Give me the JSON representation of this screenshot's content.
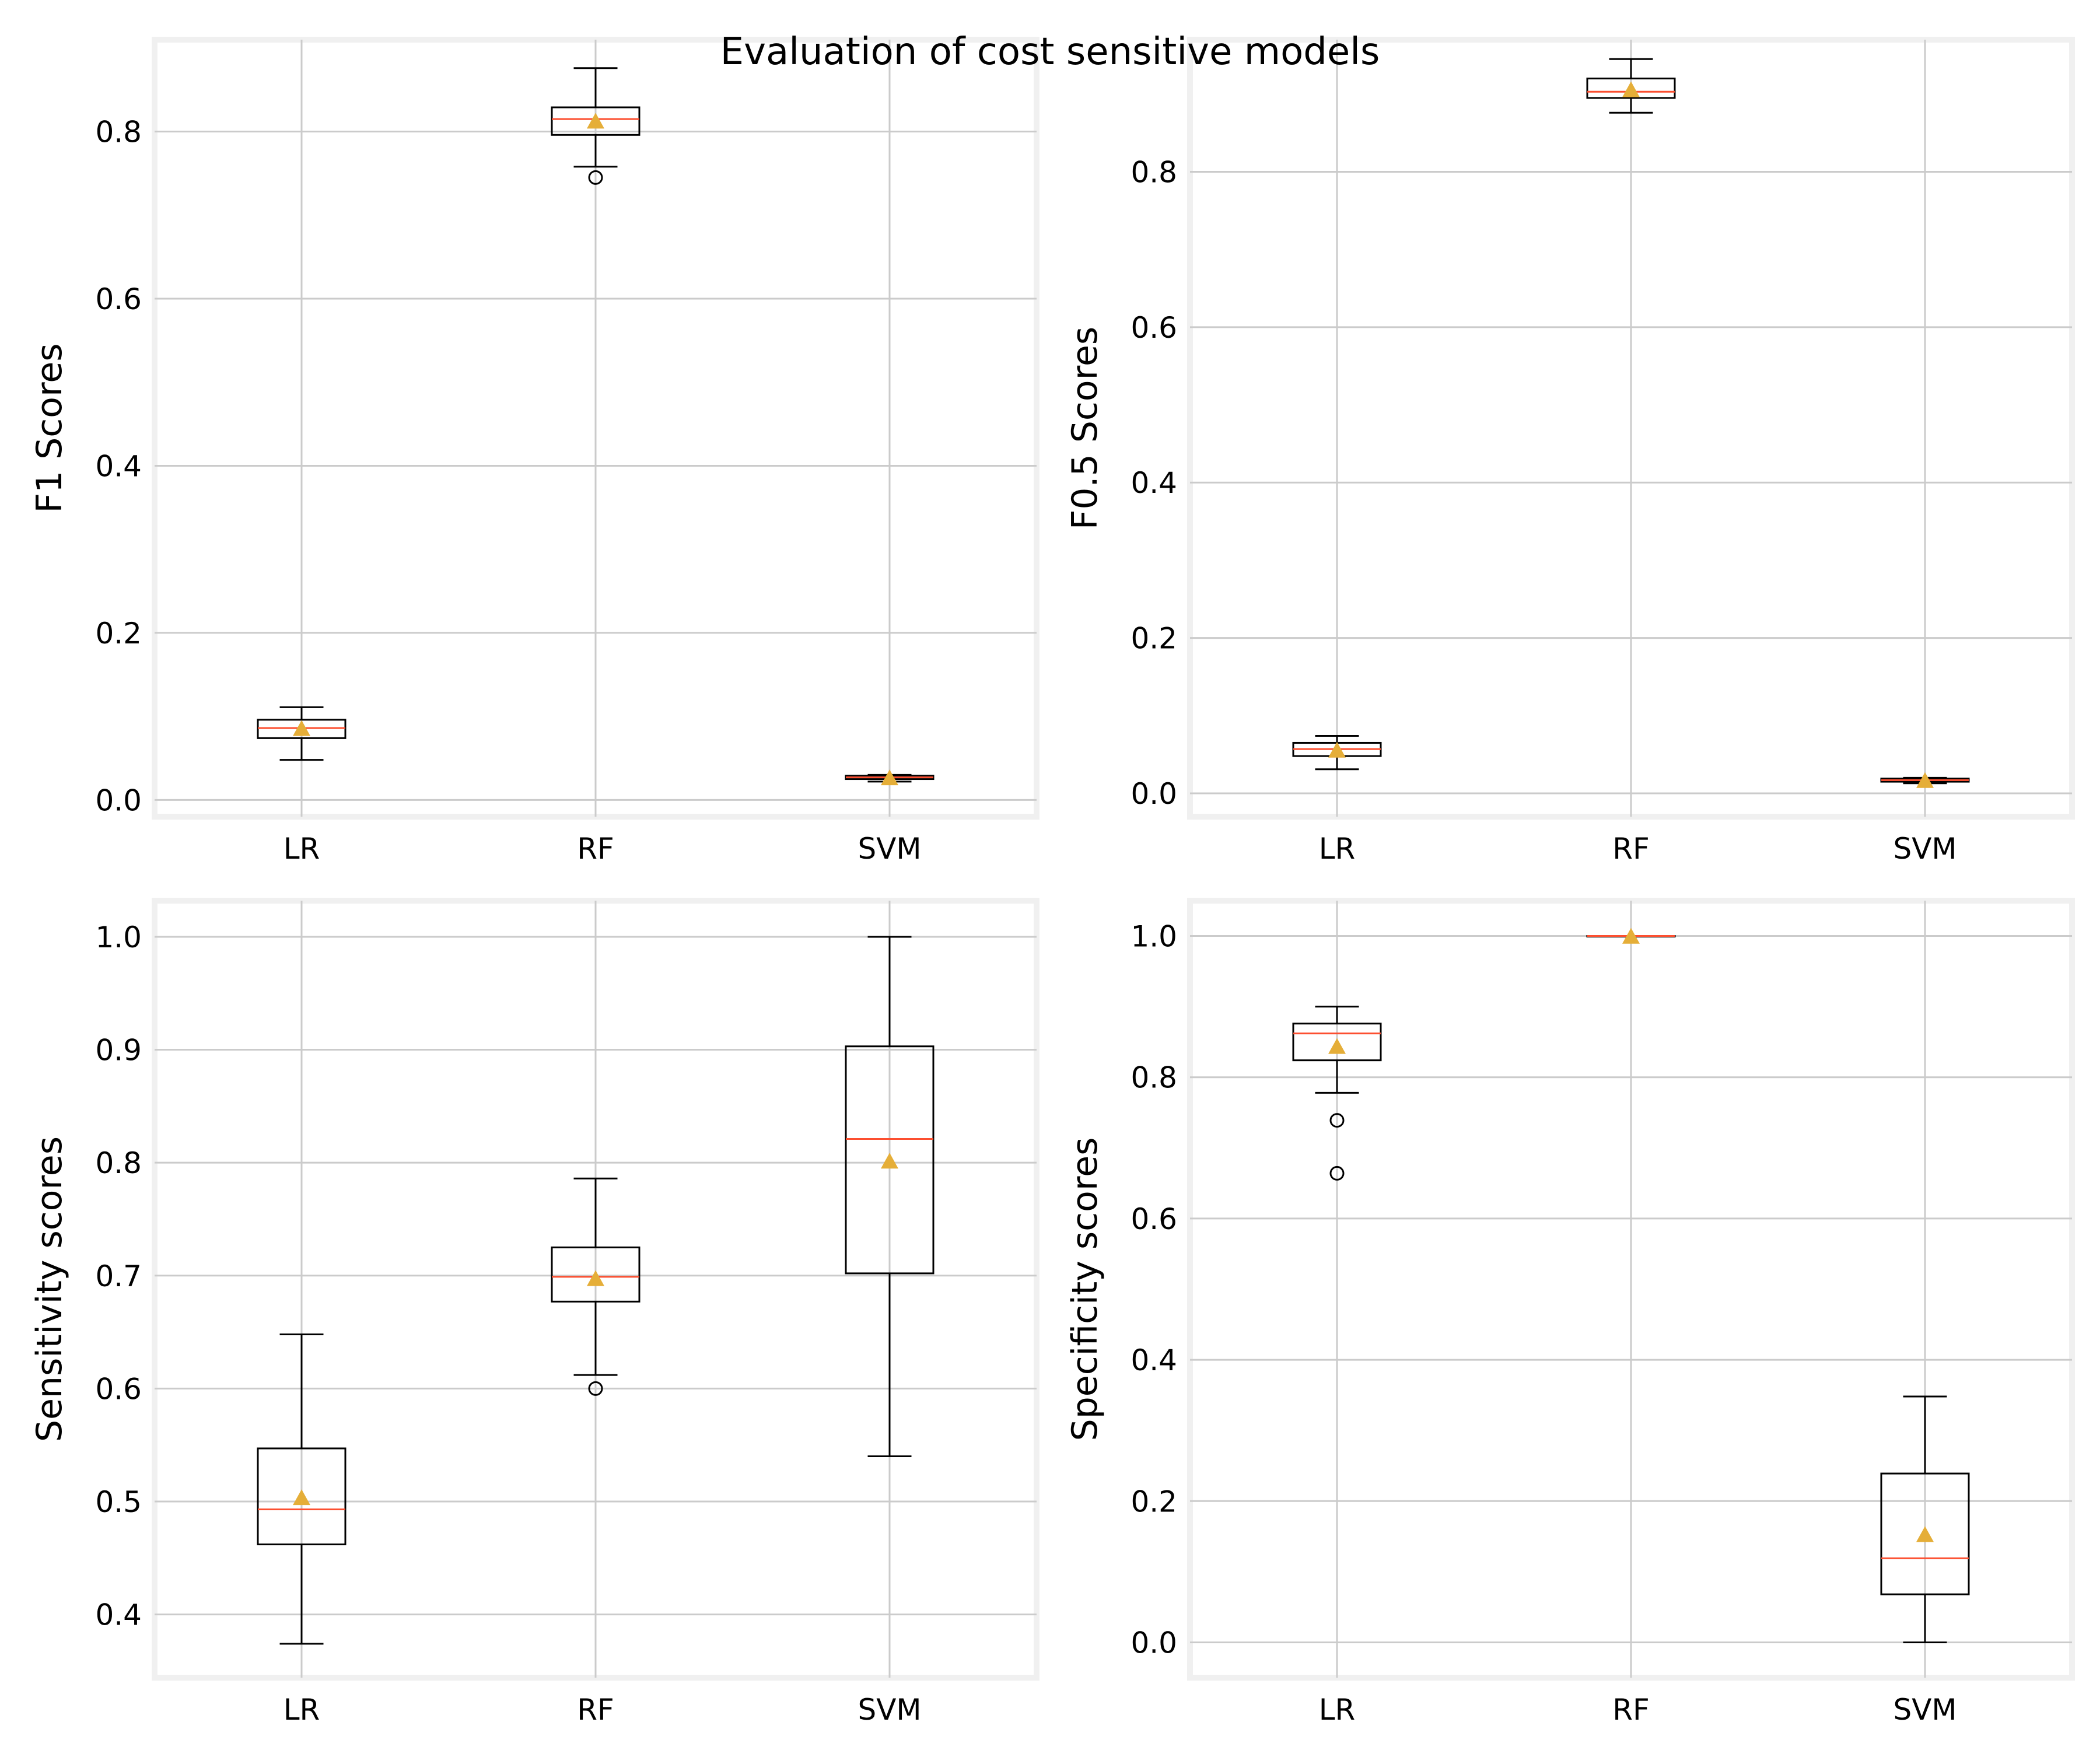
{
  "title": "Evaluation of cost sensitive models",
  "colors": {
    "background": "#ffffff",
    "axes_frame": "#f0f0f0",
    "grid": "#cbcbcb",
    "box": "#000000",
    "median": "#fc4f30",
    "mean": "#e5ae38"
  },
  "chart_data": [
    {
      "type": "box",
      "title": "",
      "ylabel": "F1 Scores",
      "categories": [
        "LR",
        "RF",
        "SVM"
      ],
      "ylim": [
        -0.02,
        0.91
      ],
      "yticks": [
        0.0,
        0.2,
        0.4,
        0.6,
        0.8
      ],
      "ytick_labels": [
        "0.0",
        "0.2",
        "0.4",
        "0.6",
        "0.8"
      ],
      "grid": true,
      "boxes": [
        {
          "whislo": 0.048,
          "q1": 0.074,
          "med": 0.086,
          "q3": 0.096,
          "whishi": 0.111,
          "mean": 0.085,
          "fliers": []
        },
        {
          "whislo": 0.758,
          "q1": 0.796,
          "med": 0.815,
          "q3": 0.829,
          "whishi": 0.876,
          "mean": 0.812,
          "fliers": [
            0.745
          ]
        },
        {
          "whislo": 0.022,
          "q1": 0.025,
          "med": 0.027,
          "q3": 0.029,
          "whishi": 0.03,
          "mean": 0.026,
          "fliers": []
        }
      ]
    },
    {
      "type": "box",
      "title": "",
      "ylabel": "F0.5 Scores",
      "categories": [
        "LR",
        "RF",
        "SVM"
      ],
      "ylim": [
        -0.03,
        0.97
      ],
      "yticks": [
        0.0,
        0.2,
        0.4,
        0.6,
        0.8
      ],
      "ytick_labels": [
        "0.0",
        "0.2",
        "0.4",
        "0.6",
        "0.8"
      ],
      "grid": true,
      "boxes": [
        {
          "whislo": 0.031,
          "q1": 0.048,
          "med": 0.057,
          "q3": 0.065,
          "whishi": 0.074,
          "mean": 0.055,
          "fliers": []
        },
        {
          "whislo": 0.876,
          "q1": 0.895,
          "med": 0.903,
          "q3": 0.92,
          "whishi": 0.945,
          "mean": 0.905,
          "fliers": []
        },
        {
          "whislo": 0.013,
          "q1": 0.015,
          "med": 0.017,
          "q3": 0.019,
          "whishi": 0.02,
          "mean": 0.016,
          "fliers": []
        }
      ]
    },
    {
      "type": "box",
      "title": "",
      "ylabel": "Sensitivity scores",
      "categories": [
        "LR",
        "RF",
        "SVM"
      ],
      "ylim": [
        0.344,
        1.032
      ],
      "yticks": [
        0.4,
        0.5,
        0.6,
        0.7,
        0.8,
        0.9,
        1.0
      ],
      "ytick_labels": [
        "0.4",
        "0.5",
        "0.6",
        "0.7",
        "0.8",
        "0.9",
        "1.0"
      ],
      "grid": true,
      "boxes": [
        {
          "whislo": 0.374,
          "q1": 0.462,
          "med": 0.493,
          "q3": 0.547,
          "whishi": 0.648,
          "mean": 0.503,
          "fliers": []
        },
        {
          "whislo": 0.612,
          "q1": 0.677,
          "med": 0.699,
          "q3": 0.725,
          "whishi": 0.786,
          "mean": 0.697,
          "fliers": [
            0.6
          ]
        },
        {
          "whislo": 0.54,
          "q1": 0.702,
          "med": 0.821,
          "q3": 0.903,
          "whishi": 1.0,
          "mean": 0.801,
          "fliers": []
        }
      ]
    },
    {
      "type": "box",
      "title": "",
      "ylabel": "Specificity scores",
      "categories": [
        "LR",
        "RF",
        "SVM"
      ],
      "ylim": [
        -0.05,
        1.05
      ],
      "yticks": [
        0.0,
        0.2,
        0.4,
        0.6,
        0.8,
        1.0
      ],
      "ytick_labels": [
        "0.0",
        "0.2",
        "0.4",
        "0.6",
        "0.8",
        "1.0"
      ],
      "grid": true,
      "boxes": [
        {
          "whislo": 0.778,
          "q1": 0.824,
          "med": 0.862,
          "q3": 0.876,
          "whishi": 0.9,
          "mean": 0.843,
          "fliers": [
            0.739,
            0.664
          ]
        },
        {
          "whislo": 1.0,
          "q1": 1.0,
          "med": 1.0,
          "q3": 1.0,
          "whishi": 1.0,
          "mean": 0.999,
          "fliers": []
        },
        {
          "whislo": 0.0,
          "q1": 0.068,
          "med": 0.119,
          "q3": 0.239,
          "whishi": 0.348,
          "mean": 0.152,
          "fliers": []
        }
      ]
    }
  ]
}
